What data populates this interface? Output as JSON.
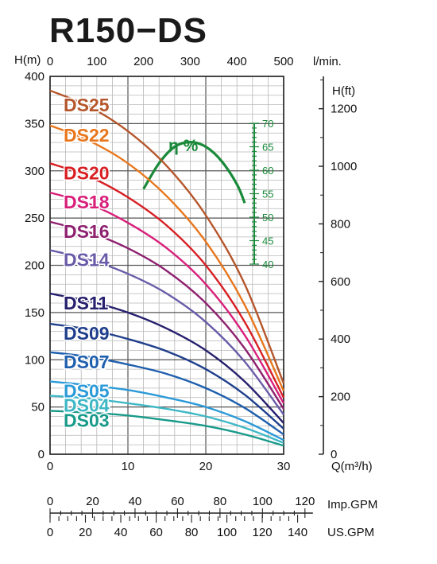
{
  "chart_data": {
    "type": "line",
    "title": "R150−DS",
    "xlabel_q": "Q(m³/h)",
    "xlabel_lmin": "l/min.",
    "ylabel_m": "H(m)",
    "ylabel_ft": "H(ft)",
    "xlim": [
      0,
      30
    ],
    "ylim": [
      0,
      400
    ],
    "lmin_ticks": [
      "0",
      "100",
      "200",
      "300",
      "400",
      "500"
    ],
    "q_ticks": [
      "0",
      "10",
      "20",
      "30"
    ],
    "h_m_ticks": [
      "0",
      "50",
      "100",
      "150",
      "200",
      "250",
      "300",
      "350",
      "400"
    ],
    "h_ft_ticks": [
      "0",
      "200",
      "400",
      "600",
      "800",
      "1000",
      "1200"
    ],
    "grid": true,
    "series": [
      {
        "name": "DS25",
        "color": "#b5562b",
        "x": [
          0,
          5,
          10,
          15,
          20,
          25,
          30
        ],
        "y": [
          385,
          368,
          342,
          305,
          253,
          180,
          75
        ]
      },
      {
        "name": "DS22",
        "color": "#e8761c",
        "x": [
          0,
          5,
          10,
          15,
          20,
          25,
          30
        ],
        "y": [
          348,
          332,
          308,
          273,
          225,
          158,
          67
        ]
      },
      {
        "name": "DS20",
        "color": "#d81e23",
        "x": [
          0,
          5,
          10,
          15,
          20,
          25,
          30
        ],
        "y": [
          308,
          294,
          272,
          242,
          200,
          140,
          60
        ]
      },
      {
        "name": "DS18",
        "color": "#d81f7a",
        "x": [
          0,
          5,
          10,
          15,
          20,
          25,
          30
        ],
        "y": [
          277,
          265,
          245,
          218,
          180,
          126,
          54
        ]
      },
      {
        "name": "DS16",
        "color": "#8e2170",
        "x": [
          0,
          5,
          10,
          15,
          20,
          25,
          30
        ],
        "y": [
          246,
          235,
          218,
          194,
          160,
          112,
          48
        ]
      },
      {
        "name": "DS14",
        "color": "#6a5ba8",
        "x": [
          0,
          5,
          10,
          15,
          20,
          25,
          30
        ],
        "y": [
          216,
          206,
          191,
          170,
          140,
          98,
          42
        ]
      },
      {
        "name": "DS11",
        "color": "#26206e",
        "x": [
          0,
          5,
          10,
          15,
          20,
          25,
          30
        ],
        "y": [
          170,
          162,
          150,
          133,
          110,
          77,
          33
        ]
      },
      {
        "name": "DS09",
        "color": "#1f3f8c",
        "x": [
          0,
          5,
          10,
          15,
          20,
          25,
          30
        ],
        "y": [
          138,
          132,
          122,
          109,
          90,
          63,
          27
        ]
      },
      {
        "name": "DS07",
        "color": "#1e5fae",
        "x": [
          0,
          5,
          10,
          15,
          20,
          25,
          30
        ],
        "y": [
          108,
          103,
          95,
          85,
          70,
          49,
          21
        ]
      },
      {
        "name": "DS05",
        "color": "#2b9ad8",
        "x": [
          0,
          5,
          10,
          15,
          20,
          25,
          30
        ],
        "y": [
          77,
          73,
          68,
          60,
          50,
          35,
          15
        ]
      },
      {
        "name": "DS04",
        "color": "#3fb8c5",
        "x": [
          0,
          5,
          10,
          15,
          20,
          25,
          30
        ],
        "y": [
          62,
          59,
          54,
          48,
          40,
          28,
          12
        ]
      },
      {
        "name": "DS03",
        "color": "#189a8a",
        "x": [
          0,
          5,
          10,
          15,
          20,
          25,
          30
        ],
        "y": [
          46,
          44,
          41,
          36,
          30,
          21,
          9
        ]
      }
    ],
    "efficiency": {
      "label": "η %",
      "color": "#1a8a3a",
      "ticks": [
        "40",
        "45",
        "50",
        "55",
        "60",
        "65",
        "70"
      ],
      "range": [
        40,
        70
      ],
      "x": [
        12,
        14,
        16,
        18,
        20,
        22,
        24,
        25
      ],
      "y": [
        56,
        61.5,
        65,
        66,
        65,
        62,
        57,
        53
      ]
    },
    "imp_gpm": {
      "label": "Imp.GPM",
      "ticks": [
        "0",
        "20",
        "40",
        "60",
        "80",
        "100",
        "120"
      ]
    },
    "us_gpm": {
      "label": "US.GPM",
      "ticks": [
        "0",
        "20",
        "40",
        "60",
        "80",
        "100",
        "120",
        "140"
      ]
    }
  }
}
